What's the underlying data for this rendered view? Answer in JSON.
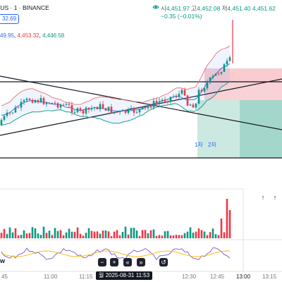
{
  "header": {
    "symbol_title": "/US · 1 · BINANCE",
    "ohlc": {
      "open_label": "시",
      "open": "4,451.97",
      "high_label": "고",
      "high": "4,452.08",
      "low_label": "저",
      "low": "4,451.40",
      "close": "4,451.62",
      "change": "−0.35 (−0.01%)"
    },
    "price_tag": "32.69"
  },
  "indicator_values": {
    "a": "49.95",
    "b": "4,453.32",
    "c": "4,446.58"
  },
  "markers": {
    "first": "1차",
    "second": "2차"
  },
  "toolbar": {
    "up_arrow": "↑",
    "fit_label": "↑"
  },
  "time_axis": {
    "labels": [
      "45",
      "11:00",
      "11:15",
      "12:30",
      "12:45",
      "13:00",
      "13:15"
    ],
    "date_pill": "월 2025-08-31   11:53"
  },
  "controls": {
    "minus": "−",
    "plus": "+",
    "back": "«",
    "forward": "»",
    "reset": "↺"
  },
  "lower_pane_label": "w",
  "colors": {
    "up": "#089981",
    "down": "#f23645",
    "accent": "#2962ff",
    "band": "#e57373",
    "stop_zone": "#f8c4c8",
    "target_zone": "#bfe3da"
  }
}
